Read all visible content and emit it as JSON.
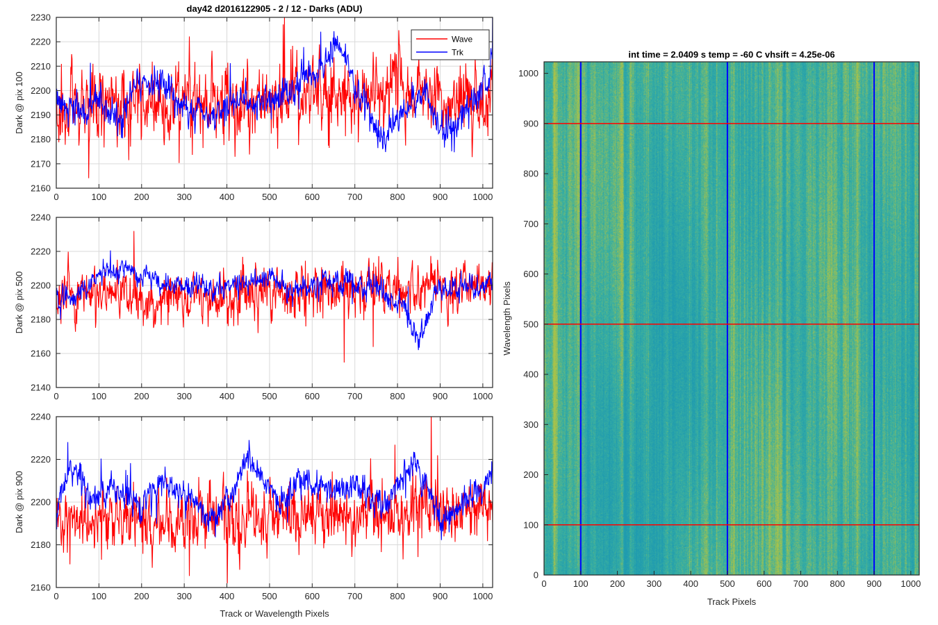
{
  "figure": {
    "title": "day42 d2016122905 - 2 / 12 - Darks (ADU)",
    "xlabel": "Track or Wavelength Pixels"
  },
  "colors": {
    "wave": "#ff0000",
    "trk": "#0000ff",
    "axes": "#262626",
    "grid": "#d9d9d9",
    "cmap_low": "#1f9bb0",
    "cmap_mid": "#3bb0a0",
    "cmap_high": "#a8c24a"
  },
  "chart_data": [
    {
      "type": "line",
      "ylabel": "Dark @ pix 100",
      "xlim": [
        0,
        1023
      ],
      "ylim": [
        2160,
        2230
      ],
      "xticks": [
        0,
        100,
        200,
        300,
        400,
        500,
        600,
        700,
        800,
        900,
        1000
      ],
      "yticks": [
        2160,
        2170,
        2180,
        2190,
        2200,
        2210,
        2220,
        2230
      ],
      "grid": true,
      "legend": {
        "location": "top-right",
        "entries": [
          "Wave",
          "Trk"
        ]
      },
      "series": [
        {
          "name": "Wave",
          "color": "#ff0000",
          "mean": 2195,
          "noise": 9,
          "seed": 11,
          "x": [
            0,
            100,
            200,
            300,
            400,
            500,
            600,
            700,
            800,
            900,
            1023
          ],
          "trend": [
            2192,
            2194,
            2194,
            2195,
            2195,
            2196,
            2197,
            2199,
            2200,
            2197,
            2198
          ]
        },
        {
          "name": "Trk",
          "color": "#0000ff",
          "mean": 2195,
          "noise": 4,
          "seed": 23,
          "x": [
            0,
            30,
            60,
            100,
            150,
            180,
            230,
            280,
            350,
            450,
            560,
            640,
            660,
            700,
            760,
            800,
            860,
            910,
            960,
            1023
          ],
          "trend": [
            2200,
            2190,
            2192,
            2195,
            2188,
            2202,
            2205,
            2196,
            2190,
            2195,
            2200,
            2212,
            2222,
            2202,
            2182,
            2188,
            2200,
            2182,
            2192,
            2210
          ]
        }
      ]
    },
    {
      "type": "line",
      "ylabel": "Dark @ pix 500",
      "xlim": [
        0,
        1023
      ],
      "ylim": [
        2140,
        2240
      ],
      "xticks": [
        0,
        100,
        200,
        300,
        400,
        500,
        600,
        700,
        800,
        900,
        1000
      ],
      "yticks": [
        2140,
        2160,
        2180,
        2200,
        2220,
        2240
      ],
      "grid": true,
      "series": [
        {
          "name": "Wave",
          "color": "#ff0000",
          "mean": 2195,
          "noise": 9,
          "seed": 37,
          "x": [
            0,
            200,
            400,
            600,
            800,
            1023
          ],
          "trend": [
            2193,
            2194,
            2195,
            2197,
            2199,
            2200
          ]
        },
        {
          "name": "Trk",
          "color": "#0000ff",
          "mean": 2198,
          "noise": 4,
          "seed": 41,
          "x": [
            0,
            50,
            100,
            150,
            250,
            350,
            450,
            500,
            550,
            600,
            700,
            760,
            820,
            850,
            890,
            950,
            1023
          ],
          "trend": [
            2190,
            2196,
            2205,
            2210,
            2202,
            2198,
            2202,
            2206,
            2196,
            2200,
            2202,
            2198,
            2185,
            2165,
            2195,
            2200,
            2200
          ]
        }
      ]
    },
    {
      "type": "line",
      "ylabel": "Dark @ pix 900",
      "xlim": [
        0,
        1023
      ],
      "ylim": [
        2160,
        2240
      ],
      "xticks": [
        0,
        100,
        200,
        300,
        400,
        500,
        600,
        700,
        800,
        900,
        1000
      ],
      "yticks": [
        2160,
        2180,
        2200,
        2220,
        2240
      ],
      "grid": true,
      "series": [
        {
          "name": "Wave",
          "color": "#ff0000",
          "mean": 2192,
          "noise": 9,
          "seed": 53,
          "x": [
            0,
            200,
            400,
            600,
            800,
            1023
          ],
          "trend": [
            2190,
            2191,
            2192,
            2194,
            2196,
            2198
          ]
        },
        {
          "name": "Trk",
          "color": "#0000ff",
          "mean": 2202,
          "noise": 4,
          "seed": 67,
          "x": [
            0,
            40,
            80,
            150,
            200,
            250,
            320,
            380,
            450,
            520,
            580,
            640,
            700,
            760,
            840,
            900,
            960,
            1023
          ],
          "trend": [
            2196,
            2218,
            2200,
            2205,
            2198,
            2210,
            2200,
            2192,
            2220,
            2200,
            2212,
            2205,
            2210,
            2198,
            2220,
            2192,
            2200,
            2212
          ]
        }
      ]
    },
    {
      "type": "heatmap",
      "title": "int time = 2.0409 s    temp = -60 C    vhsift = 4.25e-06",
      "xlabel": "Track Pixels",
      "ylabel": "Wavelength Pixels",
      "xlim": [
        0,
        1023
      ],
      "ylim": [
        0,
        1023
      ],
      "xticks": [
        0,
        100,
        200,
        300,
        400,
        500,
        600,
        700,
        800,
        900,
        1000
      ],
      "yticks": [
        0,
        100,
        200,
        300,
        400,
        500,
        600,
        700,
        800,
        900,
        1000
      ],
      "vertical_lines": {
        "x": [
          100,
          500,
          900
        ],
        "color": "#0000ff"
      },
      "horizontal_lines": {
        "y": [
          100,
          500,
          900
        ],
        "color": "#ff0000"
      },
      "seed": 97
    }
  ]
}
